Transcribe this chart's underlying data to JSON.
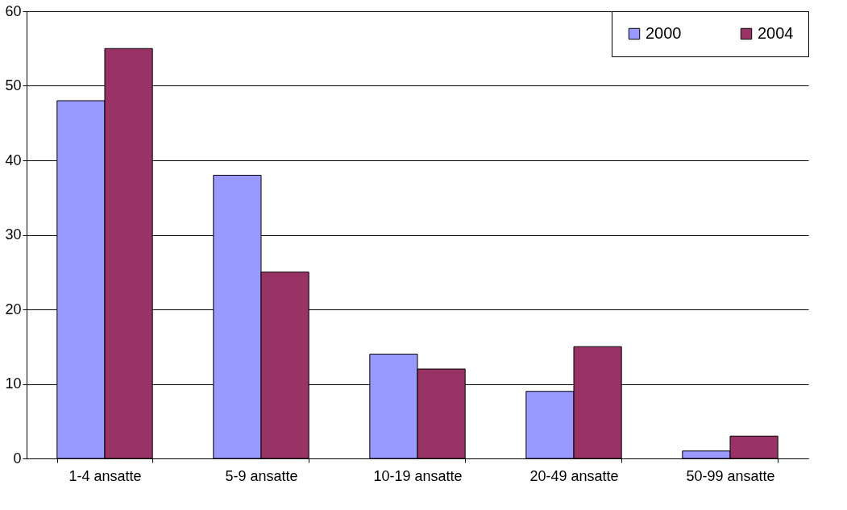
{
  "chart_data": {
    "type": "bar",
    "categories": [
      "1-4 ansatte",
      "5-9 ansatte",
      "10-19 ansatte",
      "20-49 ansatte",
      "50-99 ansatte"
    ],
    "series": [
      {
        "name": "2000",
        "color": "#9999ff",
        "values": [
          48,
          38,
          14,
          9,
          1
        ]
      },
      {
        "name": "2004",
        "color": "#993366",
        "values": [
          55,
          25,
          12,
          15,
          3
        ]
      }
    ],
    "ylim": [
      0,
      60
    ],
    "yticks": [
      0,
      10,
      20,
      30,
      40,
      50,
      60
    ],
    "grid": "y",
    "legend": "top right"
  }
}
